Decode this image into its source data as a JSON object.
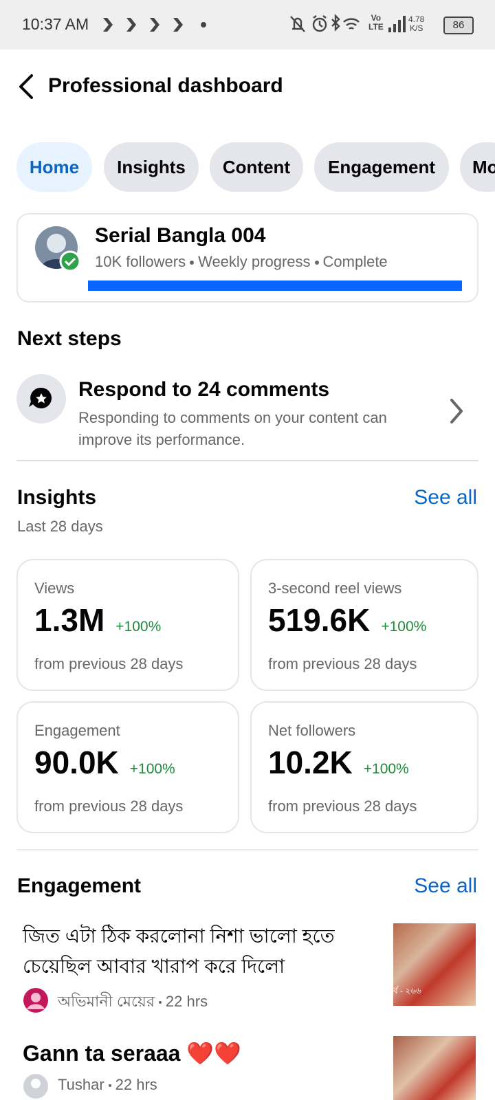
{
  "status_bar": {
    "time": "10:37 AM",
    "volte": "Vo",
    "lte": "LTE",
    "network_speed": "4.78",
    "speed_unit": "K/S",
    "battery": "86"
  },
  "header": {
    "title": "Professional dashboard"
  },
  "tabs": [
    "Home",
    "Insights",
    "Content",
    "Engagement",
    "Mo"
  ],
  "profile": {
    "name": "Serial Bangla 004",
    "followers": "10K followers",
    "progress_label": "Weekly progress",
    "status": "Complete"
  },
  "next_steps": {
    "title": "Next steps",
    "items": [
      {
        "title": "Respond to 24 comments",
        "description": "Responding to comments on your content can improve its performance."
      }
    ]
  },
  "insights": {
    "title": "Insights",
    "see_all": "See all",
    "period": "Last 28 days",
    "cards": [
      {
        "label": "Views",
        "value": "1.3M",
        "change": "+100%",
        "comparison": "from previous 28 days"
      },
      {
        "label": "3-second reel views",
        "value": "519.6K",
        "change": "+100%",
        "comparison": "from previous 28 days"
      },
      {
        "label": "Engagement",
        "value": "90.0K",
        "change": "+100%",
        "comparison": "from previous 28 days"
      },
      {
        "label": "Net followers",
        "value": "10.2K",
        "change": "+100%",
        "comparison": "from previous 28 days"
      }
    ]
  },
  "engagement": {
    "title": "Engagement",
    "see_all": "See all",
    "comments": [
      {
        "text": "জিত এটা ঠিক করলোনা নিশা ভালো হতে চেয়েছিল আবার খারাপ করে দিলো",
        "author": "অভিমানী মেয়ের",
        "time": "22 hrs",
        "thumbnail_caption": "র্ব - ২৬৬"
      },
      {
        "text": "Gann ta seraaa ❤️❤️",
        "author": "Tushar",
        "time": "22 hrs"
      }
    ]
  }
}
